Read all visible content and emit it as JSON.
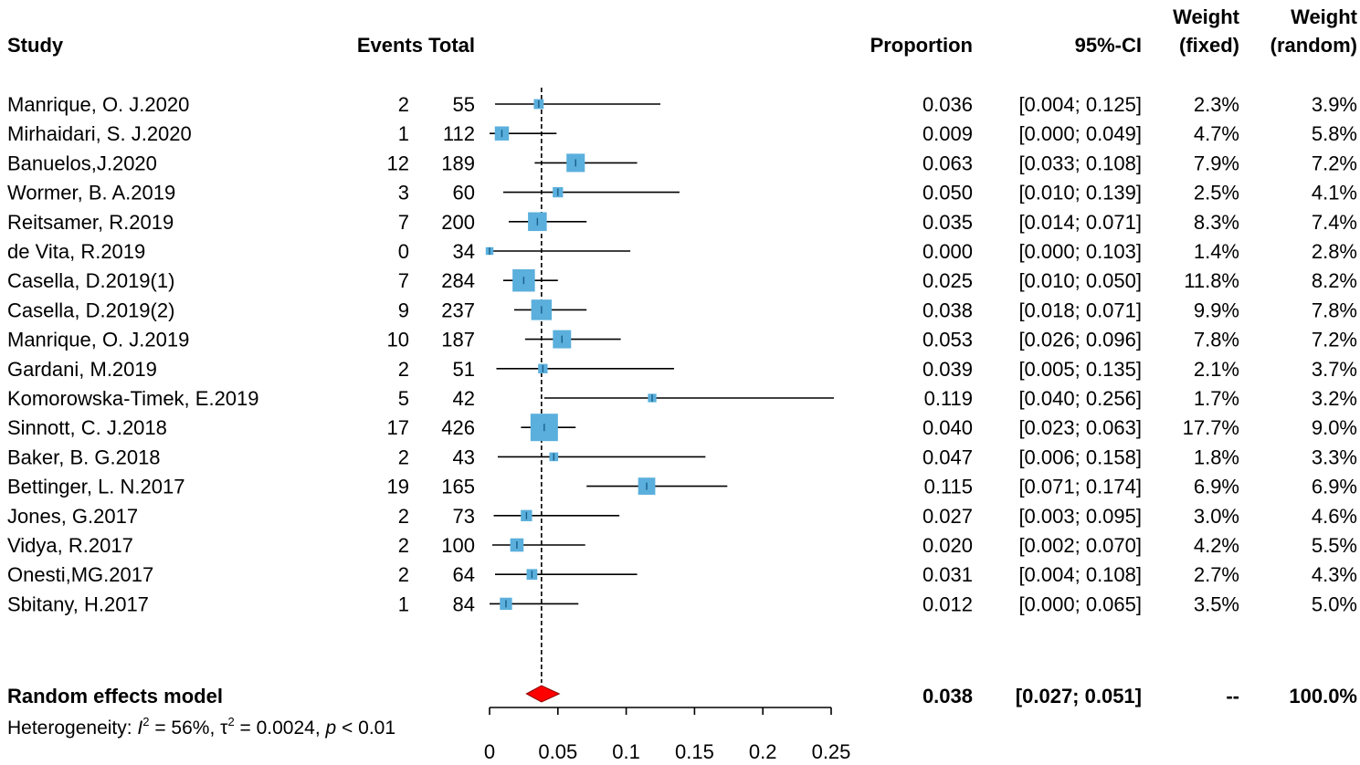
{
  "chart_data": {
    "type": "forest",
    "headers": {
      "study": "Study",
      "events_total": "Events Total",
      "proportion": "Proportion",
      "ci": "95%-CI",
      "weight_fixed_line1": "Weight",
      "weight_fixed_line2": "(fixed)",
      "weight_random_line1": "Weight",
      "weight_random_line2": "(random)"
    },
    "xlim": [
      0,
      0.25
    ],
    "x_ticks": [
      0,
      0.05,
      0.1,
      0.15,
      0.2,
      0.25
    ],
    "x_tick_labels": [
      "0",
      "0.05",
      "0.1",
      "0.15",
      "0.2",
      "0.25"
    ],
    "reference_line": 0.038,
    "colors": {
      "box": "#5aafdc",
      "diamond": "#ff0000",
      "line": "#000000"
    },
    "studies": [
      {
        "name": "Manrique, O. J.2020",
        "events": "2",
        "total": "55",
        "proportion": 0.036,
        "ci_low": 0.004,
        "ci_high": 0.125,
        "proportion_text": "0.036",
        "ci_text": "[0.004; 0.125]",
        "w_fixed": "2.3%",
        "w_random": "3.9%",
        "w_fixed_value": 2.3
      },
      {
        "name": "Mirhaidari, S. J.2020",
        "events": "1",
        "total": "112",
        "proportion": 0.009,
        "ci_low": 0.0,
        "ci_high": 0.049,
        "proportion_text": "0.009",
        "ci_text": "[0.000; 0.049]",
        "w_fixed": "4.7%",
        "w_random": "5.8%",
        "w_fixed_value": 4.7
      },
      {
        "name": "Banuelos,J.2020",
        "events": "12",
        "total": "189",
        "proportion": 0.063,
        "ci_low": 0.033,
        "ci_high": 0.108,
        "proportion_text": "0.063",
        "ci_text": "[0.033; 0.108]",
        "w_fixed": "7.9%",
        "w_random": "7.2%",
        "w_fixed_value": 7.9
      },
      {
        "name": "Wormer, B. A.2019",
        "events": "3",
        "total": "60",
        "proportion": 0.05,
        "ci_low": 0.01,
        "ci_high": 0.139,
        "proportion_text": "0.050",
        "ci_text": "[0.010; 0.139]",
        "w_fixed": "2.5%",
        "w_random": "4.1%",
        "w_fixed_value": 2.5
      },
      {
        "name": "Reitsamer, R.2019",
        "events": "7",
        "total": "200",
        "proportion": 0.035,
        "ci_low": 0.014,
        "ci_high": 0.071,
        "proportion_text": "0.035",
        "ci_text": "[0.014; 0.071]",
        "w_fixed": "8.3%",
        "w_random": "7.4%",
        "w_fixed_value": 8.3
      },
      {
        "name": "de Vita, R.2019",
        "events": "0",
        "total": "34",
        "proportion": 0.0,
        "ci_low": 0.0,
        "ci_high": 0.103,
        "proportion_text": "0.000",
        "ci_text": "[0.000; 0.103]",
        "w_fixed": "1.4%",
        "w_random": "2.8%",
        "w_fixed_value": 1.4
      },
      {
        "name": "Casella, D.2019(1)",
        "events": "7",
        "total": "284",
        "proportion": 0.025,
        "ci_low": 0.01,
        "ci_high": 0.05,
        "proportion_text": "0.025",
        "ci_text": "[0.010; 0.050]",
        "w_fixed": "11.8%",
        "w_random": "8.2%",
        "w_fixed_value": 11.8
      },
      {
        "name": "Casella, D.2019(2)",
        "events": "9",
        "total": "237",
        "proportion": 0.038,
        "ci_low": 0.018,
        "ci_high": 0.071,
        "proportion_text": "0.038",
        "ci_text": "[0.018; 0.071]",
        "w_fixed": "9.9%",
        "w_random": "7.8%",
        "w_fixed_value": 9.9
      },
      {
        "name": "Manrique, O. J.2019",
        "events": "10",
        "total": "187",
        "proportion": 0.053,
        "ci_low": 0.026,
        "ci_high": 0.096,
        "proportion_text": "0.053",
        "ci_text": "[0.026; 0.096]",
        "w_fixed": "7.8%",
        "w_random": "7.2%",
        "w_fixed_value": 7.8
      },
      {
        "name": "Gardani, M.2019",
        "events": "2",
        "total": "51",
        "proportion": 0.039,
        "ci_low": 0.005,
        "ci_high": 0.135,
        "proportion_text": "0.039",
        "ci_text": "[0.005; 0.135]",
        "w_fixed": "2.1%",
        "w_random": "3.7%",
        "w_fixed_value": 2.1
      },
      {
        "name": "Komorowska-Timek, E.2019",
        "events": "5",
        "total": "42",
        "proportion": 0.119,
        "ci_low": 0.04,
        "ci_high": 0.256,
        "proportion_text": "0.119",
        "ci_text": "[0.040; 0.256]",
        "w_fixed": "1.7%",
        "w_random": "3.2%",
        "w_fixed_value": 1.7
      },
      {
        "name": "Sinnott, C. J.2018",
        "events": "17",
        "total": "426",
        "proportion": 0.04,
        "ci_low": 0.023,
        "ci_high": 0.063,
        "proportion_text": "0.040",
        "ci_text": "[0.023; 0.063]",
        "w_fixed": "17.7%",
        "w_random": "9.0%",
        "w_fixed_value": 17.7
      },
      {
        "name": "Baker, B. G.2018",
        "events": "2",
        "total": "43",
        "proportion": 0.047,
        "ci_low": 0.006,
        "ci_high": 0.158,
        "proportion_text": "0.047",
        "ci_text": "[0.006; 0.158]",
        "w_fixed": "1.8%",
        "w_random": "3.3%",
        "w_fixed_value": 1.8
      },
      {
        "name": "Bettinger, L. N.2017",
        "events": "19",
        "total": "165",
        "proportion": 0.115,
        "ci_low": 0.071,
        "ci_high": 0.174,
        "proportion_text": "0.115",
        "ci_text": "[0.071; 0.174]",
        "w_fixed": "6.9%",
        "w_random": "6.9%",
        "w_fixed_value": 6.9
      },
      {
        "name": "Jones, G.2017",
        "events": "2",
        "total": "73",
        "proportion": 0.027,
        "ci_low": 0.003,
        "ci_high": 0.095,
        "proportion_text": "0.027",
        "ci_text": "[0.003; 0.095]",
        "w_fixed": "3.0%",
        "w_random": "4.6%",
        "w_fixed_value": 3.0
      },
      {
        "name": "Vidya, R.2017",
        "events": "2",
        "total": "100",
        "proportion": 0.02,
        "ci_low": 0.002,
        "ci_high": 0.07,
        "proportion_text": "0.020",
        "ci_text": "[0.002; 0.070]",
        "w_fixed": "4.2%",
        "w_random": "5.5%",
        "w_fixed_value": 4.2
      },
      {
        "name": "Onesti,MG.2017",
        "events": "2",
        "total": "64",
        "proportion": 0.031,
        "ci_low": 0.004,
        "ci_high": 0.108,
        "proportion_text": "0.031",
        "ci_text": "[0.004; 0.108]",
        "w_fixed": "2.7%",
        "w_random": "4.3%",
        "w_fixed_value": 2.7
      },
      {
        "name": "Sbitany, H.2017",
        "events": "1",
        "total": "84",
        "proportion": 0.012,
        "ci_low": 0.0,
        "ci_high": 0.065,
        "proportion_text": "0.012",
        "ci_text": "[0.000; 0.065]",
        "w_fixed": "3.5%",
        "w_random": "5.0%",
        "w_fixed_value": 3.5
      }
    ],
    "pooled": {
      "label": "Random effects model",
      "proportion": 0.038,
      "ci_low": 0.027,
      "ci_high": 0.051,
      "proportion_text": "0.038",
      "ci_text": "[0.027; 0.051]",
      "w_fixed": "--",
      "w_random": "100.0%"
    },
    "heterogeneity": {
      "prefix": "Heterogeneity: ",
      "i2_symbol": "I",
      "i2_value": " = 56%, ",
      "tau_symbol": "τ",
      "tau_value": " = 0.0024, ",
      "p_symbol": "p",
      "p_value": " < 0.01",
      "superscript": "2"
    }
  }
}
